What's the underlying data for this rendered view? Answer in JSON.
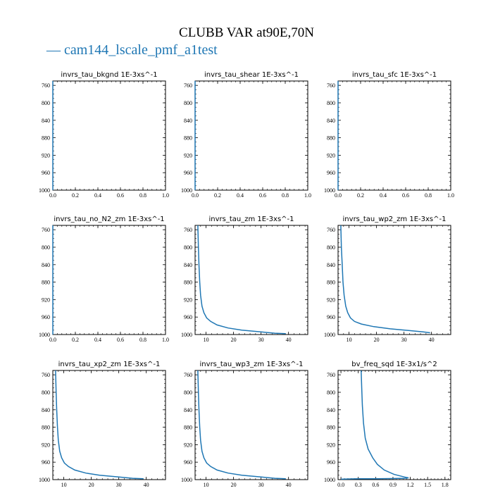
{
  "figure": {
    "title": "CLUBB VAR at90E,70N",
    "legend": "— cam144_lscale_pmf_a1test",
    "series_color": "#1f77b4"
  },
  "chart_data": [
    {
      "type": "line",
      "title": "invrs_tau_bkgnd",
      "units": "1E-3xs^-1",
      "xlim": [
        0,
        1
      ],
      "ylim": [
        1000,
        750
      ],
      "xticks": [
        "0.0",
        "0.2",
        "0.4",
        "0.6",
        "0.8",
        "1.0"
      ],
      "yticks": [
        760,
        800,
        840,
        880,
        920,
        960,
        1000
      ],
      "series": [
        {
          "x": [
            0,
            0,
            0,
            0,
            0
          ],
          "y": [
            750,
            800,
            880,
            960,
            1000
          ]
        }
      ]
    },
    {
      "type": "line",
      "title": "invrs_tau_shear",
      "units": "1E-3xs^-1",
      "xlim": [
        0,
        1
      ],
      "ylim": [
        1000,
        750
      ],
      "xticks": [
        "0.0",
        "0.2",
        "0.4",
        "0.6",
        "0.8",
        "1.0"
      ],
      "yticks": [
        760,
        800,
        840,
        880,
        920,
        960,
        1000
      ],
      "series": [
        {
          "x": [
            0,
            0,
            0,
            0,
            0
          ],
          "y": [
            750,
            800,
            880,
            960,
            1000
          ]
        }
      ]
    },
    {
      "type": "line",
      "title": "invrs_tau_sfc",
      "units": "1E-3xs^-1",
      "xlim": [
        0,
        1
      ],
      "ylim": [
        1000,
        750
      ],
      "xticks": [
        "0.0",
        "0.2",
        "0.4",
        "0.6",
        "0.8",
        "1.0"
      ],
      "yticks": [
        760,
        800,
        840,
        880,
        920,
        960,
        1000
      ],
      "series": [
        {
          "x": [
            0,
            0,
            0,
            0,
            0
          ],
          "y": [
            750,
            800,
            880,
            960,
            1000
          ]
        }
      ]
    },
    {
      "type": "line",
      "title": "invrs_tau_no_N2_zm",
      "units": "1E-3xs^-1",
      "xlim": [
        0,
        1
      ],
      "ylim": [
        1000,
        750
      ],
      "xticks": [
        "0.0",
        "0.2",
        "0.4",
        "0.6",
        "0.8",
        "1.0"
      ],
      "yticks": [
        760,
        800,
        840,
        880,
        920,
        960,
        1000
      ],
      "series": [
        {
          "x": [
            0,
            0,
            0,
            0,
            0
          ],
          "y": [
            750,
            800,
            880,
            960,
            1000
          ]
        }
      ]
    },
    {
      "type": "line",
      "title": "invrs_tau_zm",
      "units": "1E-3xs^-1",
      "xlim": [
        6,
        47
      ],
      "ylim": [
        1000,
        750
      ],
      "xticks": [
        10,
        20,
        30,
        40
      ],
      "yticks": [
        760,
        800,
        840,
        880,
        920,
        960,
        1000
      ],
      "series": [
        {
          "x": [
            7.0,
            7.2,
            7.4,
            7.7,
            8.0,
            8.5,
            9.2,
            10.2,
            11.7,
            14.0,
            18.0,
            23.0,
            30.0,
            35.0,
            39.0
          ],
          "y": [
            750,
            800,
            840,
            880,
            910,
            935,
            950,
            962,
            970,
            978,
            985,
            990,
            994,
            997,
            998
          ]
        }
      ]
    },
    {
      "type": "line",
      "title": "invrs_tau_wp2_zm",
      "units": "1E-3xs^-1",
      "xlim": [
        6,
        47
      ],
      "ylim": [
        1000,
        750
      ],
      "xticks": [
        10,
        20,
        30,
        40
      ],
      "yticks": [
        760,
        800,
        840,
        880,
        920,
        960,
        1000
      ],
      "series": [
        {
          "x": [
            7.0,
            7.2,
            7.5,
            7.8,
            8.2,
            8.8,
            9.5,
            10.5,
            12.0,
            14.5,
            19.0,
            25.0,
            32.0,
            37.0,
            39.5
          ],
          "y": [
            750,
            800,
            840,
            880,
            910,
            935,
            950,
            962,
            970,
            976,
            982,
            987,
            991,
            994,
            996
          ]
        }
      ]
    },
    {
      "type": "line",
      "title": "invrs_tau_xp2_zm",
      "units": "1E-3xs^-1",
      "xlim": [
        6,
        47
      ],
      "ylim": [
        1000,
        750
      ],
      "xticks": [
        10,
        20,
        30,
        40
      ],
      "yticks": [
        760,
        800,
        840,
        880,
        920,
        960,
        1000
      ],
      "series": [
        {
          "x": [
            7.0,
            7.2,
            7.4,
            7.7,
            8.0,
            8.5,
            9.2,
            10.2,
            11.7,
            14.0,
            18.0,
            23.0,
            30.0,
            35.0,
            39.0
          ],
          "y": [
            750,
            800,
            840,
            880,
            910,
            935,
            950,
            962,
            970,
            978,
            985,
            990,
            994,
            997,
            998
          ]
        }
      ]
    },
    {
      "type": "line",
      "title": "invrs_tau_wp3_zm",
      "units": "1E-3xs^-1",
      "xlim": [
        6,
        47
      ],
      "ylim": [
        1000,
        750
      ],
      "xticks": [
        10,
        20,
        30,
        40
      ],
      "yticks": [
        760,
        800,
        840,
        880,
        920,
        960,
        1000
      ],
      "series": [
        {
          "x": [
            7.0,
            7.2,
            7.4,
            7.7,
            8.0,
            8.5,
            9.2,
            10.2,
            11.7,
            14.0,
            18.0,
            23.0,
            30.0,
            35.0,
            39.0
          ],
          "y": [
            750,
            800,
            840,
            880,
            910,
            935,
            950,
            962,
            970,
            978,
            985,
            990,
            994,
            997,
            998
          ]
        }
      ]
    },
    {
      "type": "line",
      "title": "bv_freq_sqd",
      "units": "1E-3x1/s^2",
      "xlim": [
        -0.05,
        1.9
      ],
      "ylim": [
        1000,
        750
      ],
      "xticks": [
        "0.0",
        "0.3",
        "0.6",
        "0.9",
        "1.2",
        "1.5",
        "1.8"
      ],
      "yticks": [
        760,
        800,
        840,
        880,
        920,
        960,
        1000
      ],
      "series": [
        {
          "x": [
            0.35,
            0.36,
            0.37,
            0.39,
            0.42,
            0.47,
            0.55,
            0.63,
            0.75,
            0.92,
            1.1,
            1.17
          ],
          "y": [
            750,
            790,
            830,
            870,
            905,
            930,
            950,
            965,
            978,
            988,
            994,
            996
          ]
        },
        {
          "x": [
            0.0,
            0.1,
            0.3,
            0.6,
            0.85,
            1.0,
            1.1,
            1.17
          ],
          "y": [
            999,
            998.5,
            998,
            998,
            997.5,
            997.3,
            997,
            996
          ]
        }
      ]
    }
  ]
}
